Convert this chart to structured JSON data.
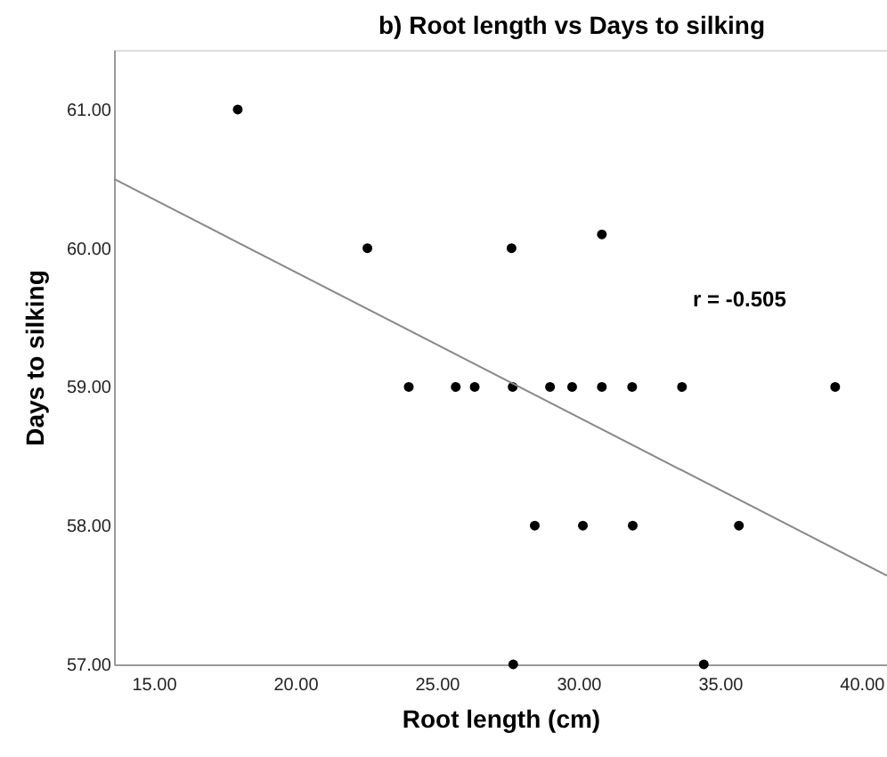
{
  "chart_data": {
    "type": "scatter",
    "title": "b) Root length vs Days to silking",
    "xlabel": "Root length (cm)",
    "ylabel": "Days to silking",
    "annotations": [
      "r = -0.505"
    ],
    "series": [
      {
        "color": "#000000",
        "x": [
          17.97,
          22.55,
          27.64,
          30.83,
          24.01,
          25.67,
          26.34,
          27.68,
          29.0,
          29.78,
          30.83,
          31.9,
          33.66,
          39.07,
          28.46,
          30.16,
          31.92,
          35.67,
          27.7,
          34.43
        ],
        "values": [
          61,
          60,
          60,
          60.1,
          59,
          59,
          59,
          59,
          59,
          59,
          59,
          59,
          59,
          59,
          58,
          58,
          58,
          58,
          57,
          57
        ]
      },
      {
        "type": "line",
        "marker": "none",
        "color": "#888888",
        "x": [
          13.6,
          40.9
        ],
        "values": [
          60.5,
          57.64
        ]
      }
    ],
    "xlim": [
      13.6,
      40.9
    ],
    "ylim": [
      57,
      61.43
    ],
    "xticks": [
      {
        "value": 15,
        "label": "15.00"
      },
      {
        "value": 20,
        "label": "20.00"
      },
      {
        "value": 25,
        "label": "25.00"
      },
      {
        "value": 30,
        "label": "30.00"
      },
      {
        "value": 35,
        "label": "35.00"
      },
      {
        "value": 40,
        "label": "40.00"
      }
    ],
    "yticks": [
      {
        "value": 57,
        "label": "57.00"
      },
      {
        "value": 58,
        "label": "58.00"
      },
      {
        "value": 59,
        "label": "59.00"
      },
      {
        "value": 60,
        "label": "60.00"
      },
      {
        "value": 61,
        "label": "61.00"
      }
    ],
    "grid": false,
    "marker": "circle"
  }
}
